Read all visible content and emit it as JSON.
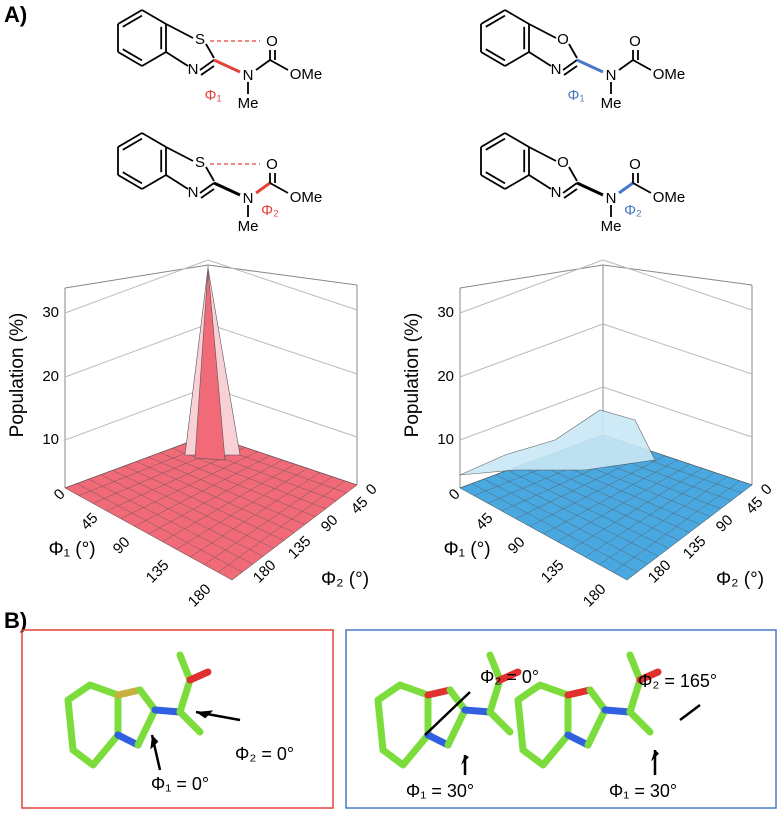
{
  "panel_a": {
    "label": "A)",
    "molecules": [
      {
        "atoms": [
          "S",
          "N",
          "N",
          "O",
          "OMe",
          "Me"
        ],
        "angle": "Φ₁"
      },
      {
        "atoms": [
          "O",
          "N",
          "N",
          "O",
          "OMe",
          "Me"
        ],
        "angle": "Φ₁"
      },
      {
        "atoms": [
          "S",
          "N",
          "N",
          "O",
          "OMe",
          "Me"
        ],
        "angle": "Φ₂"
      },
      {
        "atoms": [
          "O",
          "N",
          "N",
          "O",
          "OMe",
          "Me"
        ],
        "angle": "Φ₂"
      }
    ],
    "plots": [
      {
        "y_label": "Population (%)",
        "y_ticks": [
          "10",
          "20",
          "30"
        ],
        "x_label": "Φ₁ (°)",
        "x_ticks": [
          "0",
          "45",
          "90",
          "135",
          "180"
        ],
        "z_label": "Φ₂ (°)",
        "z_ticks": [
          "0",
          "45",
          "90",
          "135",
          "180"
        ]
      },
      {
        "y_label": "Population (%)",
        "y_ticks": [
          "10",
          "20",
          "30"
        ],
        "x_label": "Φ₁ (°)",
        "x_ticks": [
          "0",
          "45",
          "90",
          "135",
          "180"
        ],
        "z_label": "Φ₂ (°)",
        "z_ticks": [
          "0",
          "45",
          "90",
          "135",
          "180"
        ]
      }
    ]
  },
  "panel_b": {
    "label": "B)",
    "annotations": [
      "Φ₁ = 0°",
      "Φ₂ = 0°",
      "Φ₂ = 0°",
      "Φ₁ = 30°",
      "Φ₂ = 165°",
      "Φ₁ = 30°"
    ]
  }
}
